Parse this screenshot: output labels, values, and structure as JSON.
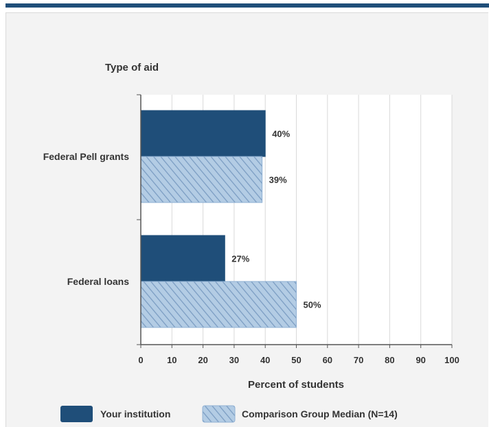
{
  "chart_data": {
    "type": "bar",
    "orientation": "horizontal",
    "y_axis_title": "Type of aid",
    "xlabel": "Percent of students",
    "xlim": [
      0,
      100
    ],
    "x_ticks": [
      "0",
      "10",
      "20",
      "30",
      "40",
      "50",
      "60",
      "70",
      "80",
      "90",
      "100"
    ],
    "grid": true,
    "categories": [
      "Federal Pell grants",
      "Federal loans"
    ],
    "series": [
      {
        "name": "Your institution",
        "values": [
          40,
          27
        ],
        "labels": [
          "40%",
          "27%"
        ],
        "color": "#1f4e79",
        "pattern": "solid"
      },
      {
        "name": "Comparison Group Median (N=14)",
        "values": [
          39,
          50
        ],
        "labels": [
          "39%",
          "50%"
        ],
        "color": "#a9c4e0",
        "pattern": "hatched"
      }
    ],
    "legend_position": "bottom"
  },
  "colors": {
    "accent": "#1f4e79",
    "panel": "#f3f3f3",
    "plot": "#ffffff",
    "grid": "#d9d9d9"
  }
}
